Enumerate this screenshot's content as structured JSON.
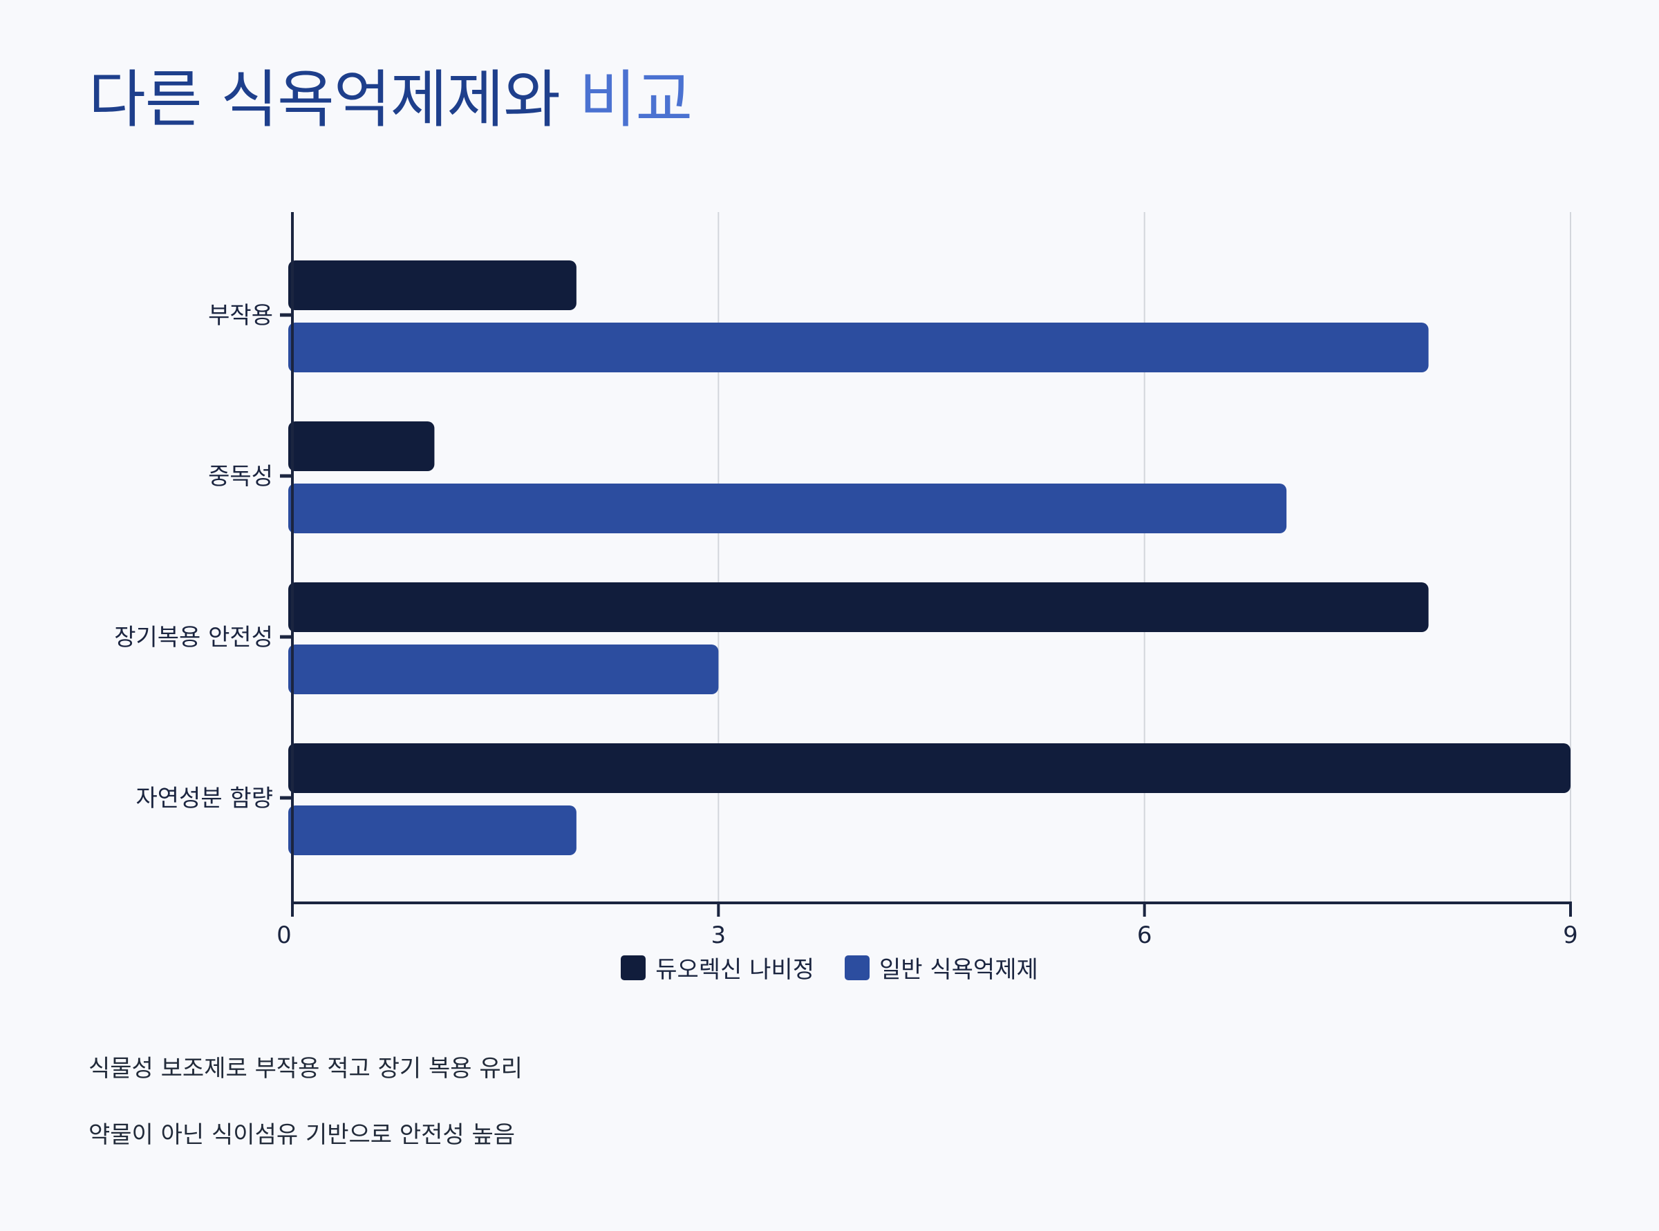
{
  "title": {
    "part1": "다른 식욕억제제와",
    "part2": "비교"
  },
  "chart_data": {
    "type": "bar",
    "orientation": "horizontal",
    "categories": [
      "부작용",
      "중독성",
      "장기복용 안전성",
      "자연성분 함량"
    ],
    "series": [
      {
        "name": "듀오렉신 나비정",
        "values": [
          2,
          1,
          8,
          9
        ],
        "color": "#111d3c"
      },
      {
        "name": "일반 식욕억제제",
        "values": [
          8,
          7,
          3,
          2
        ],
        "color": "#2c4d9f"
      }
    ],
    "xlim": [
      0,
      9
    ],
    "xticks": [
      "0",
      "3",
      "6",
      "9"
    ],
    "grid": true,
    "legend_position": "bottom-center"
  },
  "colors": {
    "title_dark": "#1e3f8c",
    "title_light": "#4b72d1",
    "axis": "#1b2540",
    "grid": "#d3d6dc",
    "background": "#f8f9fc"
  },
  "notes": [
    "식물성 보조제로 부작용 적고 장기 복용 유리",
    "약물이 아닌 식이섬유 기반으로 안전성 높음"
  ]
}
